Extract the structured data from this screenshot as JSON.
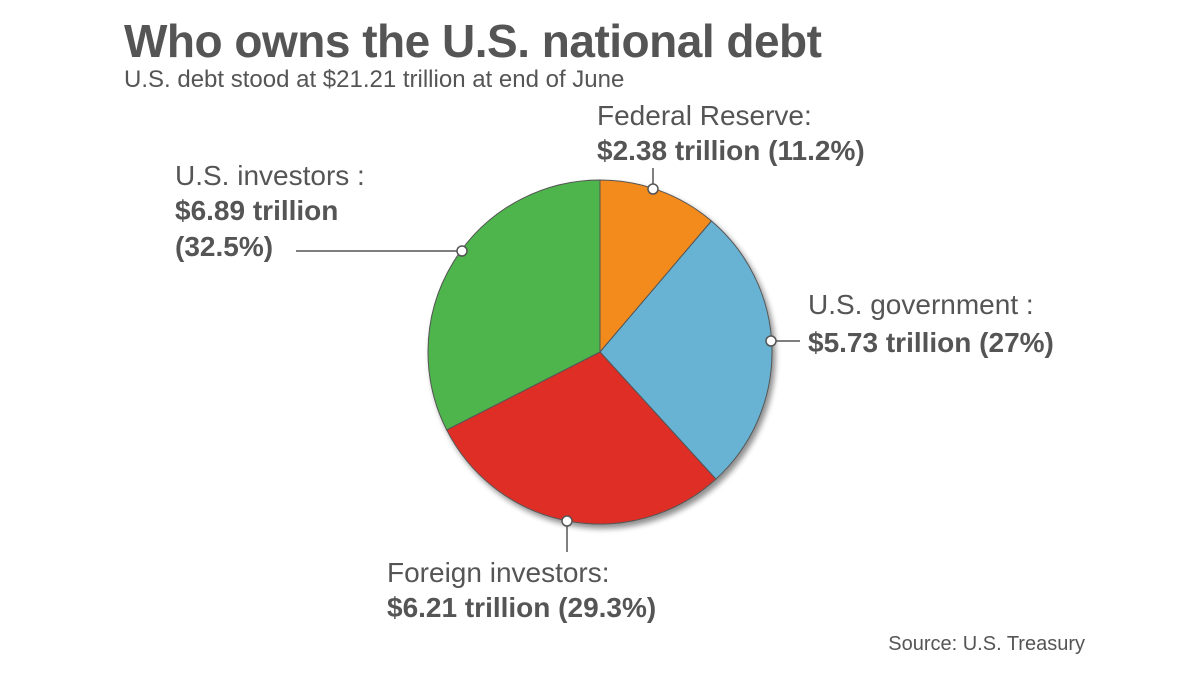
{
  "title": "Who owns the U.S. national debt",
  "subtitle": "U.S. debt stood at $21.21 trillion at end of June",
  "source": "Source: U.S. Treasury",
  "chart_data": {
    "type": "pie",
    "title": "Who owns the U.S. national debt",
    "subtitle": "U.S. debt stood at $21.21 trillion at end of June",
    "total": 21.21,
    "unit": "trillion",
    "slices": [
      {
        "name": "Federal Reserve",
        "value": 2.38,
        "percent": 11.2,
        "color": "#F28A1F",
        "label_name": "Federal Reserve:",
        "label_value": "$2.38 trillion (11.2%)"
      },
      {
        "name": "U.S. government",
        "value": 5.73,
        "percent": 27,
        "color": "#67B2D3",
        "label_name": "U.S. government :",
        "label_value": "$5.73 trillion (27%)"
      },
      {
        "name": "Foreign investors",
        "value": 6.21,
        "percent": 29.3,
        "color": "#DF2E25",
        "label_name": "Foreign investors:",
        "label_value": "$6.21 trillion (29.3%)"
      },
      {
        "name": "U.S. investors",
        "value": 6.89,
        "percent": 32.5,
        "color": "#4DB54B",
        "label_name": "U.S. investors :",
        "label_value_1": "$6.89 trillion",
        "label_value_2": "(32.5%)"
      }
    ],
    "start_angle": "12 o'clock",
    "direction": "clockwise"
  }
}
